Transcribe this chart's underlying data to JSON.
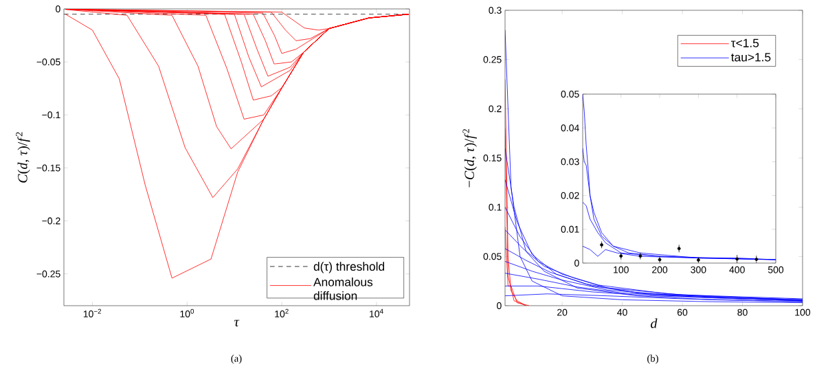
{
  "chart_data": [
    {
      "type": "line",
      "xlabel": "*τ*",
      "ylabel": "*C*(*d*, *τ*)/*f*$^{2}$",
      "log": "x",
      "legend": "bottom right",
      "xlim": [
        0.0025,
        50000
      ],
      "ylim": [
        -0.28,
        0
      ],
      "xticks": [
        {
          "value": 0.01,
          "label": "10$^{−2}$"
        },
        {
          "value": 1,
          "label": "10$^{0}$"
        },
        {
          "value": 100,
          "label": "10$^{2}$"
        },
        {
          "value": 10000,
          "label": "10$^{4}$"
        }
      ],
      "yticks": [
        0,
        {
          "value": -0.05,
          "label": "−0.05"
        },
        {
          "value": -0.1,
          "label": "−0.1"
        },
        {
          "value": -0.15,
          "label": "−0.15"
        },
        {
          "value": -0.2,
          "label": "−0.2"
        },
        {
          "value": -0.25,
          "label": "−0.25"
        }
      ],
      "ref_lines": [
        {
          "axis": "y",
          "value": -0.005,
          "label": "d(τ) threshold",
          "color": "#000000",
          "line_style": "dashed"
        }
      ],
      "annotations": [
        "(a)"
      ],
      "series": [
        {
          "name": "Anomalous diffusion",
          "color": "#ff0000",
          "x": [
            0.0027,
            0.01,
            0.037,
            0.13,
            0.48,
            1,
            1.17,
            3.2,
            11.7,
            41.7,
            102,
            288,
            1000,
            6900,
            47900
          ],
          "values": [
            -0.005,
            -0.02,
            -0.066,
            -0.166,
            -0.254,
            null,
            null,
            -0.236,
            -0.154,
            -0.104,
            -0.074,
            -0.041,
            -0.0185,
            -0.0085,
            -0.005
          ]
        },
        {
          "color": "#ff0000",
          "x": [
            0.0027,
            0.054,
            0.25,
            0.91,
            3.5,
            11.7,
            41.7,
            102,
            288,
            1000,
            6900,
            47900
          ],
          "values": [
            -0.0005,
            -0.006,
            -0.054,
            -0.131,
            -0.178,
            -0.151,
            -0.104,
            -0.074,
            -0.041,
            -0.0185,
            -0.0085,
            -0.005
          ]
        },
        {
          "color": "#ff0000",
          "x": [
            0.0027,
            0.48,
            1.7,
            4.2,
            8.5,
            41.7,
            102,
            288,
            1000,
            6900,
            47900
          ],
          "values": [
            -0.0003,
            -0.006,
            -0.054,
            -0.111,
            -0.132,
            -0.104,
            -0.074,
            -0.041,
            -0.0185,
            -0.0085,
            -0.005
          ]
        },
        {
          "color": "#ff0000",
          "x": [
            0.0027,
            2.5,
            6.9,
            16,
            41.7,
            102,
            288,
            1000,
            6900,
            47900
          ],
          "values": [
            -0.0002,
            -0.006,
            -0.056,
            -0.104,
            -0.1,
            -0.074,
            -0.041,
            -0.0185,
            -0.0085,
            -0.005
          ]
        },
        {
          "color": "#ff0000",
          "x": [
            0.0027,
            6.2,
            14,
            25,
            60,
            102,
            288,
            1000,
            6900,
            47900
          ],
          "values": [
            -0.0002,
            -0.005,
            -0.05,
            -0.086,
            -0.082,
            -0.074,
            -0.041,
            -0.0185,
            -0.0085,
            -0.005
          ]
        },
        {
          "color": "#ff0000",
          "x": [
            0.0027,
            10,
            20,
            37,
            150,
            288,
            1000,
            6900,
            47900
          ],
          "values": [
            -0.0002,
            -0.005,
            -0.045,
            -0.0735,
            -0.058,
            -0.041,
            -0.0185,
            -0.0085,
            -0.005
          ]
        },
        {
          "color": "#ff0000",
          "x": [
            0.0027,
            16,
            30,
            51,
            150,
            288,
            1000,
            6900,
            47900
          ],
          "values": [
            -0.0002,
            -0.005,
            -0.038,
            -0.0635,
            -0.055,
            -0.041,
            -0.0185,
            -0.0085,
            -0.005
          ]
        },
        {
          "color": "#ff0000",
          "x": [
            0.0027,
            25,
            45,
            69,
            160,
            288,
            1000,
            6900,
            47900
          ],
          "values": [
            -0.0002,
            -0.005,
            -0.03,
            -0.052,
            -0.05,
            -0.041,
            -0.0185,
            -0.0085,
            -0.005
          ]
        },
        {
          "color": "#ff0000",
          "x": [
            0.0027,
            40,
            70,
            100,
            200,
            1000,
            6900,
            47900
          ],
          "values": [
            -0.0002,
            -0.004,
            -0.025,
            -0.042,
            -0.038,
            -0.0185,
            -0.0085,
            -0.005
          ]
        },
        {
          "color": "#ff0000",
          "x": [
            0.0027,
            60,
            120,
            200,
            400,
            1000,
            6900,
            47900
          ],
          "values": [
            -0.0002,
            -0.003,
            -0.02,
            -0.03,
            -0.028,
            -0.0185,
            -0.0085,
            -0.005
          ]
        },
        {
          "color": "#ff0000",
          "x": [
            0.0027,
            100,
            300,
            600,
            1000,
            6900,
            47900
          ],
          "values": [
            -0.0002,
            -0.003,
            -0.018,
            -0.02,
            -0.0185,
            -0.0085,
            -0.005
          ]
        }
      ]
    },
    {
      "type": "line",
      "xlabel": "*d*",
      "ylabel": "−*C*(*d*, *τ*)/*f*$^{2}$",
      "legend": "top right",
      "xlim": [
        1,
        100
      ],
      "ylim": [
        0,
        0.3
      ],
      "xticks": [
        20,
        40,
        60,
        80,
        100
      ],
      "yticks": [
        0,
        0.05,
        0.1,
        0.15,
        0.2,
        0.25,
        0.3
      ],
      "annotations": [
        "(b)"
      ],
      "series": [
        {
          "name": "τ<1.5",
          "color": "#ff0000",
          "x": [
            1,
            2,
            3,
            5,
            8
          ],
          "values": [
            0.23,
            0.05,
            0.015,
            0.005,
            0
          ]
        },
        {
          "color": "#ff0000",
          "x": [
            1,
            2,
            4,
            8
          ],
          "values": [
            0.18,
            0.03,
            0.005,
            0
          ]
        },
        {
          "color": "#ff0000",
          "x": [
            1,
            2,
            3,
            5,
            9
          ],
          "values": [
            0.08,
            0.02,
            0.02,
            0.003,
            0
          ]
        },
        {
          "name": "tau>1.5",
          "color": "#0000ff",
          "x": [
            1,
            3,
            6,
            10,
            20,
            40,
            70,
            100
          ],
          "values": [
            0.28,
            0.12,
            0.05,
            0.025,
            0.01,
            0.006,
            0.004,
            0.003
          ]
        },
        {
          "color": "#0000ff",
          "x": [
            1,
            4,
            8,
            14,
            25,
            45,
            70,
            100
          ],
          "values": [
            0.16,
            0.1,
            0.055,
            0.035,
            0.018,
            0.01,
            0.006,
            0.004
          ]
        },
        {
          "color": "#0000ff",
          "x": [
            1,
            5,
            10,
            18,
            30,
            50,
            80,
            100
          ],
          "values": [
            0.128,
            0.085,
            0.052,
            0.032,
            0.02,
            0.011,
            0.007,
            0.005
          ]
        },
        {
          "color": "#0000ff",
          "x": [
            1,
            6,
            12,
            20,
            32,
            55,
            80,
            100
          ],
          "values": [
            0.1,
            0.07,
            0.045,
            0.032,
            0.021,
            0.012,
            0.008,
            0.006
          ]
        },
        {
          "color": "#0000ff",
          "x": [
            1,
            7,
            14,
            24,
            35,
            60,
            100
          ],
          "values": [
            0.077,
            0.058,
            0.04,
            0.028,
            0.018,
            0.011,
            0.007
          ]
        },
        {
          "color": "#0000ff",
          "x": [
            1,
            8,
            16,
            28,
            45,
            70,
            100
          ],
          "values": [
            0.058,
            0.046,
            0.034,
            0.022,
            0.013,
            0.009,
            0.006
          ]
        },
        {
          "color": "#0000ff",
          "x": [
            1,
            10,
            20,
            35,
            55,
            100
          ],
          "values": [
            0.045,
            0.035,
            0.026,
            0.016,
            0.011,
            0.006
          ]
        },
        {
          "color": "#0000ff",
          "x": [
            1,
            12,
            25,
            40,
            70,
            100
          ],
          "values": [
            0.033,
            0.027,
            0.019,
            0.013,
            0.008,
            0.005
          ]
        },
        {
          "color": "#0000ff",
          "x": [
            1,
            12,
            30,
            50,
            100
          ],
          "values": [
            0.02,
            0.02,
            0.014,
            0.01,
            0.005
          ]
        },
        {
          "color": "#0000ff",
          "x": [
            1,
            15,
            35,
            60,
            100
          ],
          "values": [
            0.01,
            0.012,
            0.01,
            0.007,
            0.004
          ]
        }
      ]
    },
    {
      "type": "line",
      "xlim": [
        1,
        500
      ],
      "ylim": [
        0,
        0.05
      ],
      "xticks": [
        100,
        200,
        300,
        400,
        500
      ],
      "yticks": [
        0,
        0.01,
        0.02,
        0.03,
        0.04,
        0.05
      ],
      "series": [
        {
          "color": "#0000ff",
          "x": [
            1,
            5,
            10,
            15,
            20,
            30,
            50,
            80,
            120,
            200,
            300,
            400,
            500
          ],
          "values": [
            0.05,
            0.045,
            0.035,
            0.028,
            0.02,
            0.013,
            0.008,
            0.005,
            0.003,
            0.002,
            0.0015,
            0.0015,
            0.001
          ]
        },
        {
          "color": "#0000ff",
          "x": [
            1,
            5,
            10,
            20,
            30,
            50,
            80,
            150,
            300,
            500
          ],
          "values": [
            0.034,
            0.03,
            0.029,
            0.02,
            0.015,
            0.009,
            0.005,
            0.003,
            0.0015,
            0.001
          ]
        },
        {
          "color": "#0000ff",
          "x": [
            1,
            10,
            20,
            40,
            60,
            100,
            200,
            500
          ],
          "values": [
            0.018,
            0.017,
            0.013,
            0.009,
            0.006,
            0.003,
            0.002,
            0.001
          ]
        },
        {
          "color": "#0000ff",
          "x": [
            1,
            20,
            40,
            60,
            90,
            150,
            300,
            500
          ],
          "values": [
            0.005,
            0.004,
            0.002,
            0.004,
            0.003,
            0.002,
            0.0015,
            0.001
          ]
        },
        {
          "type": "scatter",
          "marker": "circle",
          "color": "#000000",
          "x": [
            50,
            100,
            150,
            200,
            250,
            300,
            400,
            450
          ],
          "values": [
            0.0054,
            0.0021,
            0.0021,
            0.001,
            0.0043,
            0.0009,
            0.0012,
            0.0011
          ],
          "errors": [
            0.001,
            0.001,
            0.001,
            0.001,
            0.0011,
            0.0008,
            0.0012,
            0.0011
          ]
        }
      ]
    }
  ]
}
